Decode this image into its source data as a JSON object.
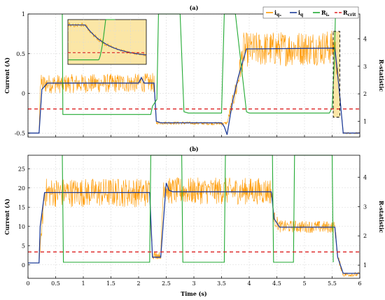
{
  "chart_data": [
    {
      "panel_label": "(a)",
      "type": "line",
      "xlabel": "",
      "ylabel": "Current (A)",
      "y2label": "R-statistic",
      "xlim": [
        0,
        6
      ],
      "ylim": [
        -0.55,
        1.0
      ],
      "y2lim": [
        0.43,
        4.9
      ],
      "yticks": [
        -0.5,
        0,
        0.5,
        1
      ],
      "yticklabels": [
        "-0.5",
        "0",
        "0.5",
        "1"
      ],
      "y2ticks": [
        1,
        2,
        3,
        4
      ],
      "y2ticklabels": [
        "1",
        "2",
        "3",
        "4"
      ],
      "xticks": [
        0,
        0.5,
        1,
        1.5,
        2,
        2.5,
        3,
        3.5,
        4,
        4.5,
        5,
        5.5,
        6
      ],
      "grid": true,
      "legend_position": "top-right",
      "series": [
        {
          "name_main": "i",
          "name_sub": "qₐ",
          "name": "iqₐ",
          "kind": "noisy_current",
          "color": "#ff9900",
          "x": [
            0,
            0.2,
            0.22,
            2.05,
            2.25,
            2.28,
            2.32,
            3.55,
            3.6,
            3.78,
            3.9,
            5.55,
            5.62,
            5.7,
            6
          ],
          "y": [
            -0.5,
            -0.5,
            0.12,
            0.13,
            0.14,
            0.12,
            -0.37,
            -0.38,
            -0.37,
            0.1,
            0.55,
            0.58,
            0.1,
            -0.5,
            -0.5
          ],
          "noise_amplitude": [
            0,
            0,
            0.12,
            0.12,
            0.12,
            0.12,
            0.02,
            0.02,
            0.02,
            0.15,
            0.22,
            0.22,
            0.05,
            0.01,
            0.01
          ]
        },
        {
          "name_main": "i",
          "name_sub": "q",
          "name": "iq",
          "kind": "current",
          "color": "#1f3d99",
          "x": [
            0,
            0.2,
            0.25,
            0.35,
            2.0,
            2.05,
            2.1,
            2.28,
            2.32,
            2.4,
            3.5,
            3.55,
            3.6,
            3.7,
            3.8,
            3.95,
            5.55,
            5.62,
            5.7,
            6
          ],
          "y": [
            -0.5,
            -0.5,
            0.05,
            0.13,
            0.13,
            0.2,
            0.13,
            0.13,
            -0.35,
            -0.37,
            -0.37,
            -0.42,
            -0.52,
            -0.1,
            0.2,
            0.56,
            0.57,
            0.1,
            -0.5,
            -0.5
          ]
        },
        {
          "name_main": "R",
          "name_sub": "iₐ",
          "name": "Riₐ",
          "kind": "r_statistic",
          "color": "#22aa33",
          "x": [
            0.62,
            0.63,
            2.22,
            2.25,
            2.33,
            2.36,
            2.7,
            2.75,
            2.82,
            2.9,
            3.5,
            3.55,
            3.72,
            3.75,
            3.95,
            4.0,
            5.45,
            5.5,
            5.54,
            5.56
          ],
          "y": [
            4.9,
            1.25,
            1.25,
            1.55,
            1.8,
            4.9,
            4.9,
            4.9,
            1.35,
            1.3,
            1.3,
            4.9,
            4.9,
            4.9,
            1.35,
            1.3,
            1.3,
            1.5,
            3.2,
            4.9
          ]
        },
        {
          "name_main": "R",
          "name_sub": "crit",
          "name": "Rcrit",
          "kind": "threshold",
          "color": "#dd2222",
          "x": [
            0,
            6
          ],
          "y2": [
            1.45,
            1.45
          ]
        }
      ]
    },
    {
      "panel_label": "(b)",
      "type": "line",
      "xlabel": "Time (s)",
      "ylabel": "Current (A)",
      "y2label": "R-statistic",
      "xlim": [
        0,
        6
      ],
      "ylim": [
        -3.5,
        28.5
      ],
      "y2lim": [
        0.55,
        4.75
      ],
      "yticks": [
        0,
        5,
        10,
        15,
        20,
        25
      ],
      "yticklabels": [
        "0",
        "5",
        "10",
        "15",
        "20",
        "25"
      ],
      "y2ticks": [
        1,
        2,
        3,
        4
      ],
      "y2ticklabels": [
        "1",
        "2",
        "3",
        "4"
      ],
      "xticks": [
        0,
        0.5,
        1,
        1.5,
        2,
        2.5,
        3,
        3.5,
        4,
        4.5,
        5,
        5.5,
        6
      ],
      "xticklabels": [
        "0",
        "0.5",
        "1",
        "1.5",
        "2",
        "2.5",
        "3",
        "3.5",
        "4",
        "4.5",
        "5",
        "5.5",
        "6"
      ],
      "grid": true,
      "series": [
        {
          "name": "iqₐ",
          "kind": "noisy_current",
          "color": "#ff9900",
          "x": [
            0,
            0.2,
            0.3,
            2.2,
            2.25,
            2.4,
            2.45,
            2.55,
            4.4,
            4.45,
            4.55,
            5.55,
            5.6,
            5.7,
            6
          ],
          "y": [
            0.5,
            0.5,
            18.8,
            18.8,
            2.5,
            2.5,
            21,
            19.2,
            19.2,
            12,
            10,
            9.8,
            2,
            -2.5,
            -2.5
          ],
          "noise_amplitude": [
            0,
            0,
            3.8,
            3.8,
            1,
            1,
            3.5,
            3.5,
            3.5,
            2,
            1.6,
            1.6,
            1,
            0.6,
            0.6
          ]
        },
        {
          "name": "iq",
          "kind": "current",
          "color": "#1f3d99",
          "x": [
            0,
            0.2,
            0.22,
            0.3,
            2.2,
            2.25,
            2.4,
            2.5,
            2.55,
            2.62,
            4.4,
            4.45,
            4.55,
            5.55,
            5.6,
            5.7,
            6
          ],
          "y": [
            0.5,
            0.5,
            10,
            18.8,
            18.8,
            2,
            2,
            21.3,
            19.4,
            19,
            19,
            12,
            9.8,
            9.8,
            2,
            -2.2,
            -2.2
          ]
        },
        {
          "name": "Riₐ",
          "kind": "r_statistic",
          "color": "#22aa33",
          "x": [
            0.62,
            0.64,
            2.2,
            2.22,
            2.78,
            2.8,
            3.55,
            3.57,
            4.42,
            4.44,
            4.8,
            4.82,
            5.5,
            5.52
          ],
          "y": [
            4.75,
            1.1,
            1.1,
            4.75,
            4.75,
            1.1,
            1.1,
            4.75,
            4.75,
            1.1,
            1.1,
            4.75,
            4.75,
            1.1
          ]
        },
        {
          "name": "Rcrit",
          "kind": "threshold",
          "color": "#dd2222",
          "x": [
            0,
            6
          ],
          "y2": [
            1.45,
            1.45
          ]
        }
      ]
    }
  ],
  "inset": {
    "description_source": "zoom of highlighted region",
    "bg_color": "#fbe6a6",
    "x_range": [
      5.52,
      5.7
    ],
    "curves": {
      "noisy": {
        "color": "#ff9900"
      },
      "mean": {
        "color": "#1f3d99"
      },
      "r": {
        "color": "#22aa33"
      },
      "crit": {
        "color": "#dd2222"
      }
    }
  },
  "highlight_box": {
    "x": [
      5.52,
      5.64
    ],
    "y_current": [
      -0.3,
      0.78
    ],
    "fill": "#fbe6a6"
  }
}
